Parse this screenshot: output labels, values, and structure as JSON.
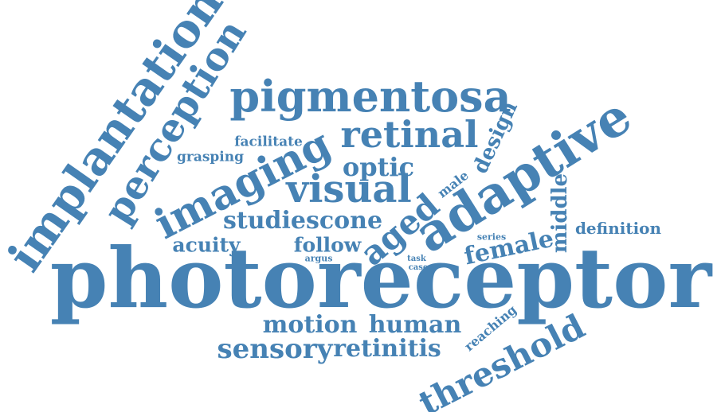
{
  "color": "#4682b4",
  "words": [
    {
      "text": "photoreceptor",
      "weight": 100
    },
    {
      "text": "adaptive",
      "weight": 60
    },
    {
      "text": "implantation",
      "weight": 55
    },
    {
      "text": "perception",
      "weight": 45
    },
    {
      "text": "pigmentosa",
      "weight": 45
    },
    {
      "text": "imaging",
      "weight": 42
    },
    {
      "text": "threshold",
      "weight": 40
    },
    {
      "text": "visual",
      "weight": 40
    },
    {
      "text": "retinal",
      "weight": 38
    },
    {
      "text": "aged",
      "weight": 36
    },
    {
      "text": "motion",
      "weight": 26
    },
    {
      "text": "human",
      "weight": 26
    },
    {
      "text": "sensory",
      "weight": 28
    },
    {
      "text": "retinitis",
      "weight": 26
    },
    {
      "text": "optic",
      "weight": 27
    },
    {
      "text": "studiescone",
      "weight": 25
    },
    {
      "text": "female",
      "weight": 24
    },
    {
      "text": "design",
      "weight": 22
    },
    {
      "text": "middle",
      "weight": 22
    },
    {
      "text": "acuity",
      "weight": 20
    },
    {
      "text": "follow",
      "weight": 20
    },
    {
      "text": "definition",
      "weight": 16
    },
    {
      "text": "grasping",
      "weight": 14
    },
    {
      "text": "facilitate",
      "weight": 14
    },
    {
      "text": "reaching",
      "weight": 13
    },
    {
      "text": "male",
      "weight": 13
    },
    {
      "text": "series",
      "weight": 9
    },
    {
      "text": "argus",
      "weight": 9
    },
    {
      "text": "task",
      "weight": 8
    },
    {
      "text": "case",
      "weight": 8
    }
  ]
}
